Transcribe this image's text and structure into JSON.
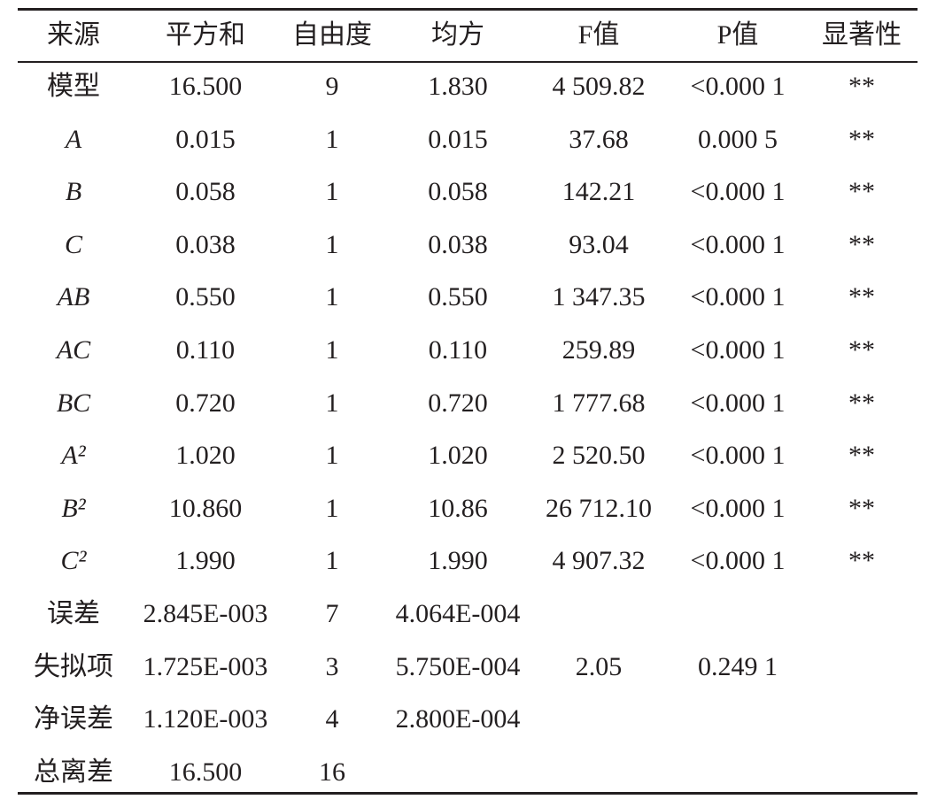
{
  "table": {
    "header": [
      "来源",
      "平方和",
      "自由度",
      "均方",
      "F值",
      "P值",
      "显著性"
    ],
    "rows": [
      [
        "模型",
        "16.500",
        "9",
        "1.830",
        "4 509.82",
        "<0.000 1",
        "**"
      ],
      [
        "A",
        "0.015",
        "1",
        "0.015",
        "37.68",
        "0.000 5",
        "**"
      ],
      [
        "B",
        "0.058",
        "1",
        "0.058",
        "142.21",
        "<0.000 1",
        "**"
      ],
      [
        "C",
        "0.038",
        "1",
        "0.038",
        "93.04",
        "<0.000 1",
        "**"
      ],
      [
        "AB",
        "0.550",
        "1",
        "0.550",
        "1 347.35",
        "<0.000 1",
        "**"
      ],
      [
        "AC",
        "0.110",
        "1",
        "0.110",
        "259.89",
        "<0.000 1",
        "**"
      ],
      [
        "BC",
        "0.720",
        "1",
        "0.720",
        "1 777.68",
        "<0.000 1",
        "**"
      ],
      [
        "A²",
        "1.020",
        "1",
        "1.020",
        "2 520.50",
        "<0.000 1",
        "**"
      ],
      [
        "B²",
        "10.860",
        "1",
        "10.86",
        "26 712.10",
        "<0.000 1",
        "**"
      ],
      [
        "C²",
        "1.990",
        "1",
        "1.990",
        "4 907.32",
        "<0.000 1",
        "**"
      ],
      [
        "误差",
        "2.845E-003",
        "7",
        "4.064E-004"
      ],
      [
        "失拟项",
        "1.725E-003",
        "3",
        "5.750E-004",
        "2.05",
        "0.249 1"
      ],
      [
        "净误差",
        "1.120E-003",
        "4",
        "2.800E-004"
      ],
      [
        "总离差",
        "16.500",
        "16"
      ]
    ]
  }
}
